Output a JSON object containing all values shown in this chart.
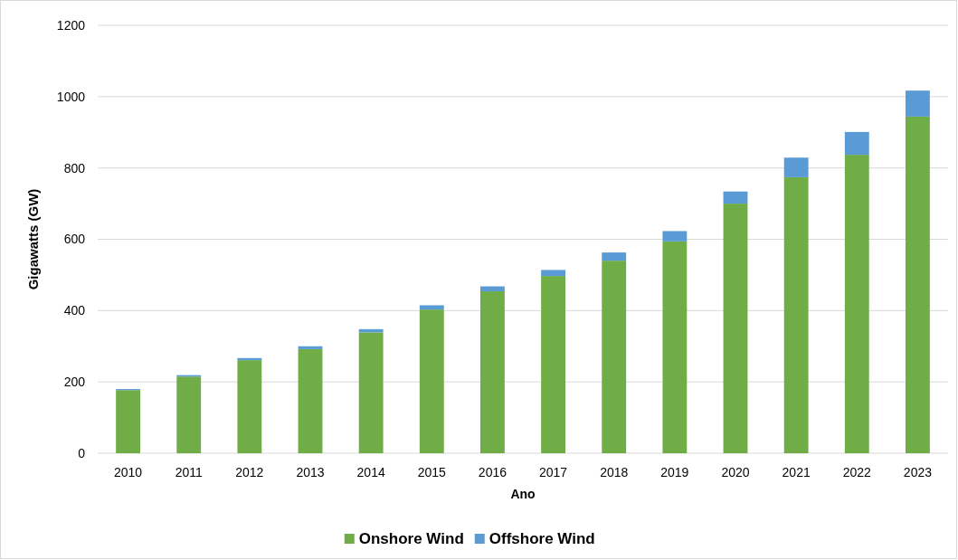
{
  "chart_data": {
    "type": "bar",
    "stacked": true,
    "xlabel": "Ano",
    "ylabel": "Gigawatts (GW)",
    "categories": [
      "2010",
      "2011",
      "2012",
      "2013",
      "2014",
      "2015",
      "2016",
      "2017",
      "2018",
      "2019",
      "2020",
      "2021",
      "2022",
      "2023"
    ],
    "series": [
      {
        "name": "Onshore Wind",
        "color": "#70ad47",
        "values": [
          177,
          215,
          261,
          292,
          339,
          403,
          454,
          497,
          540,
          594,
          700,
          774,
          837,
          944
        ]
      },
      {
        "name": "Offshore Wind",
        "color": "#5b9bd5",
        "values": [
          3,
          4,
          6,
          8,
          9,
          12,
          14,
          17,
          23,
          29,
          34,
          55,
          64,
          73
        ]
      }
    ],
    "ylim": [
      0,
      1200
    ],
    "yticks": [
      0,
      200,
      400,
      600,
      800,
      1000,
      1200
    ],
    "grid": "y",
    "legend": "bottom"
  }
}
